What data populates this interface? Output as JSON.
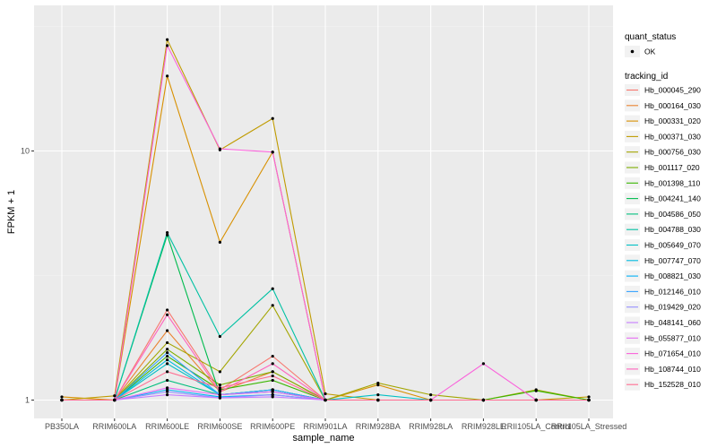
{
  "chart_data": {
    "type": "line",
    "title": "",
    "xlabel": "sample_name",
    "ylabel": "FPKM + 1",
    "y_scale": "log10",
    "ylim": [
      0.97,
      40
    ],
    "y_ticks": [
      {
        "value": 1,
        "label": "1"
      },
      {
        "value": 10,
        "label": "10"
      }
    ],
    "grid": true,
    "legend_position": "right",
    "categories": [
      "PB350LA",
      "RRIM600LA",
      "RRIM600LE",
      "RRIM600SE",
      "RRIM600PE",
      "RRIM901LA",
      "RRIM928BA",
      "RRIM928LA",
      "RRIM928LE",
      "RRII105LA_Control",
      "RRII105LA_Stressed"
    ],
    "quant_status_legend": {
      "title": "quant_status",
      "entries": [
        "OK"
      ]
    },
    "series_legend_title": "tracking_id",
    "series": [
      {
        "name": "Hb_000045_290",
        "color": "#F8766D",
        "values": [
          1.0,
          1.0,
          2.3,
          1.1,
          1.5,
          1.0,
          1.0,
          1.0,
          1.0,
          1.0,
          1.0
        ]
      },
      {
        "name": "Hb_000164_030",
        "color": "#EA8331",
        "values": [
          1.0,
          1.0,
          1.9,
          1.08,
          1.3,
          1.0,
          1.0,
          1.0,
          1.0,
          1.0,
          1.0
        ]
      },
      {
        "name": "Hb_000331_020",
        "color": "#D89000",
        "values": [
          1.03,
          1.0,
          20.0,
          4.3,
          9.9,
          1.0,
          1.15,
          1.0,
          1.0,
          1.0,
          1.0
        ]
      },
      {
        "name": "Hb_000371_030",
        "color": "#C09B00",
        "values": [
          1.0,
          1.04,
          28.0,
          10.1,
          13.5,
          1.06,
          1.0,
          1.0,
          1.0,
          1.0,
          1.03
        ]
      },
      {
        "name": "Hb_000756_030",
        "color": "#A3A500",
        "values": [
          1.0,
          1.0,
          1.7,
          1.3,
          2.4,
          1.0,
          1.17,
          1.05,
          1.0,
          1.1,
          1.0
        ]
      },
      {
        "name": "Hb_001117_020",
        "color": "#7CAE00",
        "values": [
          1.0,
          1.0,
          1.6,
          1.15,
          1.3,
          1.0,
          1.0,
          1.0,
          1.0,
          1.0,
          1.0
        ]
      },
      {
        "name": "Hb_001398_110",
        "color": "#39B600",
        "values": [
          1.0,
          1.0,
          1.5,
          1.1,
          1.2,
          1.0,
          1.0,
          1.0,
          1.0,
          1.09,
          1.0
        ]
      },
      {
        "name": "Hb_004241_140",
        "color": "#00BB4E",
        "values": [
          1.0,
          1.0,
          4.6,
          1.05,
          1.1,
          1.0,
          1.0,
          1.0,
          1.0,
          1.0,
          1.0
        ]
      },
      {
        "name": "Hb_004586_050",
        "color": "#00BF7D",
        "values": [
          1.0,
          1.0,
          1.2,
          1.05,
          1.1,
          1.0,
          1.0,
          1.0,
          1.0,
          1.0,
          1.0
        ]
      },
      {
        "name": "Hb_004788_030",
        "color": "#00C1A3",
        "values": [
          1.0,
          1.0,
          4.7,
          1.8,
          2.8,
          1.0,
          1.0,
          1.0,
          1.0,
          1.0,
          1.0
        ]
      },
      {
        "name": "Hb_005649_070",
        "color": "#00BFC4",
        "values": [
          1.0,
          1.0,
          1.4,
          1.05,
          1.1,
          1.0,
          1.05,
          1.0,
          1.0,
          1.0,
          1.0
        ]
      },
      {
        "name": "Hb_007747_070",
        "color": "#00BAE0",
        "values": [
          1.0,
          1.0,
          1.45,
          1.05,
          1.08,
          1.0,
          1.0,
          1.0,
          1.0,
          1.0,
          1.0
        ]
      },
      {
        "name": "Hb_008821_030",
        "color": "#00B0F6",
        "values": [
          1.0,
          1.0,
          1.1,
          1.03,
          1.05,
          1.0,
          1.0,
          1.0,
          1.0,
          1.0,
          1.0
        ]
      },
      {
        "name": "Hb_012146_010",
        "color": "#35A2FF",
        "values": [
          1.0,
          1.0,
          1.55,
          1.05,
          1.1,
          1.0,
          1.0,
          1.0,
          1.0,
          1.0,
          1.0
        ]
      },
      {
        "name": "Hb_019429_020",
        "color": "#9590FF",
        "values": [
          1.0,
          1.0,
          1.08,
          1.02,
          1.05,
          1.0,
          1.0,
          1.0,
          1.0,
          1.0,
          1.0
        ]
      },
      {
        "name": "Hb_048141_060",
        "color": "#C77CFF",
        "values": [
          1.0,
          1.0,
          1.05,
          1.02,
          1.03,
          1.0,
          1.0,
          1.0,
          1.0,
          1.0,
          1.0
        ]
      },
      {
        "name": "Hb_055877_010",
        "color": "#E76BF3",
        "values": [
          1.0,
          1.0,
          1.12,
          1.05,
          1.08,
          1.0,
          1.0,
          1.0,
          1.0,
          1.0,
          1.0
        ]
      },
      {
        "name": "Hb_071654_010",
        "color": "#FA62DB",
        "values": [
          1.0,
          1.0,
          26.5,
          10.2,
          9.9,
          1.0,
          1.0,
          1.0,
          1.4,
          1.0,
          1.0
        ]
      },
      {
        "name": "Hb_108744_010",
        "color": "#FF62BC",
        "values": [
          1.0,
          1.0,
          2.2,
          1.08,
          1.4,
          1.0,
          1.0,
          1.0,
          1.0,
          1.0,
          1.0
        ]
      },
      {
        "name": "Hb_152528_010",
        "color": "#FF6C91",
        "values": [
          1.0,
          1.0,
          1.3,
          1.12,
          1.25,
          1.0,
          1.0,
          1.0,
          1.0,
          1.0,
          1.0
        ]
      }
    ]
  }
}
